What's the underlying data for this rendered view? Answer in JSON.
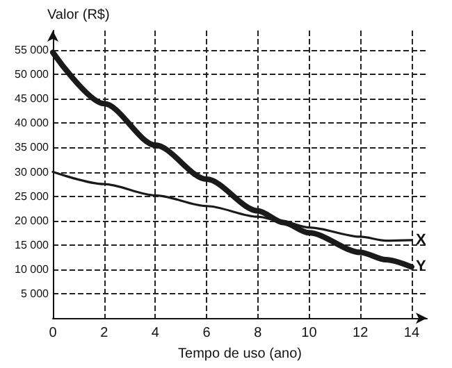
{
  "chart_data": {
    "type": "line",
    "xlabel": "Tempo de uso (ano)",
    "ylabel": "Valor (R$)",
    "x": [
      0,
      2,
      4,
      6,
      8,
      9,
      10,
      12,
      13,
      14
    ],
    "series": [
      {
        "name": "X",
        "color": "#1a1a1a",
        "values": [
          30000,
          27500,
          25200,
          23000,
          20800,
          19800,
          18600,
          16700,
          15900,
          16000
        ]
      },
      {
        "name": "Y",
        "color": "#1a1a1a",
        "values": [
          54500,
          44000,
          35500,
          28500,
          22000,
          19600,
          17500,
          13500,
          12000,
          10500
        ]
      }
    ],
    "xlim": [
      0,
      14.6
    ],
    "ylim": [
      0,
      59000
    ],
    "xticks": [
      0,
      2,
      4,
      6,
      8,
      10,
      12,
      14
    ],
    "yticks": [
      {
        "value": 5000,
        "label": "5 000"
      },
      {
        "value": 10000,
        "label": "10 000"
      },
      {
        "value": 15000,
        "label": "15 000"
      },
      {
        "value": 20000,
        "label": "20 000"
      },
      {
        "value": 25000,
        "label": "25 000"
      },
      {
        "value": 30000,
        "label": "30 000"
      },
      {
        "value": 35000,
        "label": "35 000"
      },
      {
        "value": 40000,
        "label": "40 000"
      },
      {
        "value": 45000,
        "label": "45 000"
      },
      {
        "value": 50000,
        "label": "50 000"
      },
      {
        "value": 55000,
        "label": "55 000"
      }
    ],
    "grid": true,
    "marker": "none",
    "line_style": "solid",
    "legend": false
  }
}
